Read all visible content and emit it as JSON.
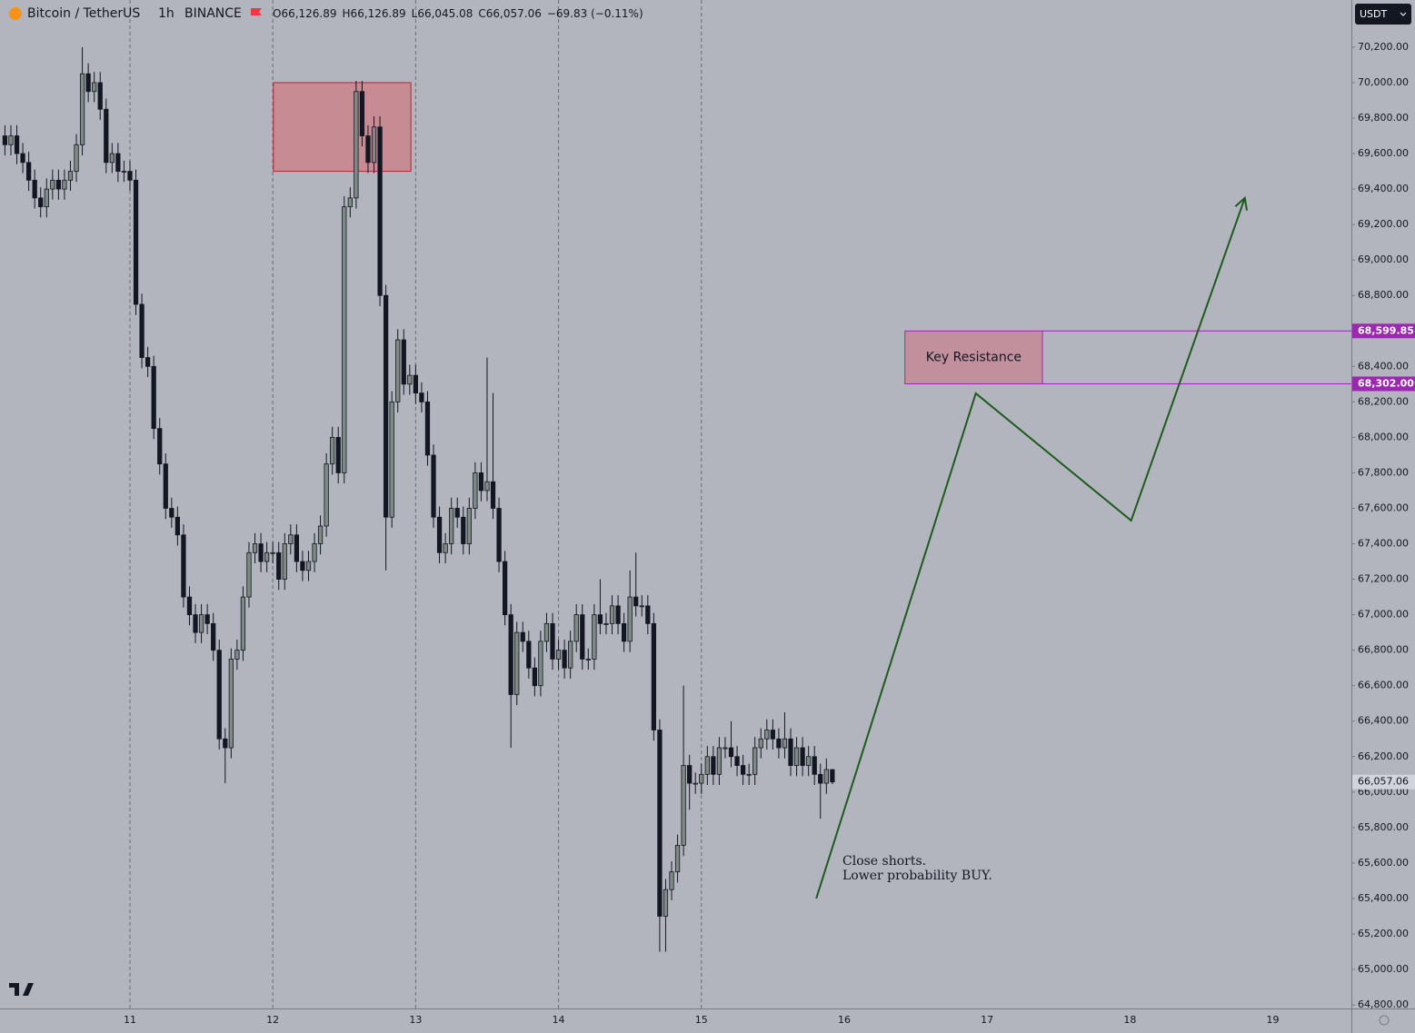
{
  "chart_data": {
    "type": "candlestick",
    "symbol": "Bitcoin / TetherUS",
    "interval": "1h",
    "exchange": "BINANCE",
    "legend": [
      "O66,126.89",
      "H66,126.89",
      "L66,045.08",
      "C66,057.06",
      "−69.83 (−0.11%)"
    ],
    "currency": "USDT",
    "last_price_label": "66,057.06",
    "up_color": "#7e8a83",
    "down_color": "#131722",
    "background": "#b2b5be",
    "candles": [
      [
        69700,
        69760,
        69590,
        69650
      ],
      [
        69650,
        69760,
        69590,
        69700
      ],
      [
        69700,
        69760,
        69540,
        69600
      ],
      [
        69600,
        69660,
        69490,
        69550
      ],
      [
        69550,
        69610,
        69390,
        69450
      ],
      [
        69450,
        69510,
        69290,
        69350
      ],
      [
        69350,
        69410,
        69240,
        69300
      ],
      [
        69300,
        69460,
        69240,
        69400
      ],
      [
        69400,
        69510,
        69340,
        69450
      ],
      [
        69450,
        69510,
        69340,
        69400
      ],
      [
        69400,
        69510,
        69340,
        69450
      ],
      [
        69450,
        69560,
        69390,
        69500
      ],
      [
        69500,
        69710,
        69440,
        69650
      ],
      [
        69650,
        70200,
        69590,
        70050
      ],
      [
        70050,
        70110,
        69890,
        69950
      ],
      [
        69950,
        70060,
        69890,
        70000
      ],
      [
        70000,
        70060,
        69790,
        69850
      ],
      [
        69850,
        69910,
        69490,
        69550
      ],
      [
        69550,
        69660,
        69490,
        69600
      ],
      [
        69600,
        69660,
        69440,
        69500
      ],
      [
        69500,
        69560,
        69440,
        69500
      ],
      [
        69500,
        69560,
        69390,
        69450
      ],
      [
        69450,
        69510,
        68690,
        68750
      ],
      [
        68750,
        68810,
        68390,
        68450
      ],
      [
        68450,
        68510,
        68340,
        68400
      ],
      [
        68400,
        68460,
        67990,
        68050
      ],
      [
        68050,
        68110,
        67790,
        67850
      ],
      [
        67850,
        67910,
        67540,
        67600
      ],
      [
        67600,
        67660,
        67490,
        67550
      ],
      [
        67550,
        67610,
        67390,
        67450
      ],
      [
        67450,
        67510,
        67040,
        67100
      ],
      [
        67100,
        67160,
        66940,
        67000
      ],
      [
        67000,
        67060,
        66840,
        66900
      ],
      [
        66900,
        67060,
        66840,
        67000
      ],
      [
        67000,
        67060,
        66890,
        66950
      ],
      [
        66950,
        67010,
        66740,
        66800
      ],
      [
        66800,
        66860,
        66240,
        66300
      ],
      [
        66300,
        66360,
        66050,
        66250
      ],
      [
        66250,
        66810,
        66190,
        66750
      ],
      [
        66750,
        66860,
        66690,
        66800
      ],
      [
        66800,
        67160,
        66740,
        67100
      ],
      [
        67100,
        67410,
        67040,
        67350
      ],
      [
        67350,
        67460,
        67290,
        67400
      ],
      [
        67400,
        67460,
        67240,
        67300
      ],
      [
        67300,
        67410,
        67240,
        67350
      ],
      [
        67350,
        67410,
        67290,
        67350
      ],
      [
        67350,
        67410,
        67140,
        67200
      ],
      [
        67200,
        67460,
        67140,
        67400
      ],
      [
        67400,
        67510,
        67340,
        67450
      ],
      [
        67450,
        67510,
        67240,
        67300
      ],
      [
        67300,
        67360,
        67190,
        67250
      ],
      [
        67250,
        67360,
        67190,
        67300
      ],
      [
        67300,
        67460,
        67240,
        67400
      ],
      [
        67400,
        67560,
        67340,
        67500
      ],
      [
        67500,
        67910,
        67440,
        67850
      ],
      [
        67850,
        68060,
        67790,
        68000
      ],
      [
        68000,
        68060,
        67740,
        67800
      ],
      [
        67800,
        69360,
        67740,
        69300
      ],
      [
        69300,
        69410,
        69240,
        69350
      ],
      [
        69350,
        70010,
        69290,
        69950
      ],
      [
        69950,
        70010,
        69640,
        69700
      ],
      [
        69700,
        69760,
        69490,
        69550
      ],
      [
        69550,
        69810,
        69490,
        69750
      ],
      [
        69750,
        69810,
        68740,
        68800
      ],
      [
        68800,
        68860,
        67250,
        67550
      ],
      [
        67550,
        68260,
        67490,
        68200
      ],
      [
        68200,
        68610,
        68140,
        68550
      ],
      [
        68550,
        68610,
        68240,
        68300
      ],
      [
        68300,
        68410,
        68240,
        68350
      ],
      [
        68350,
        68410,
        68190,
        68250
      ],
      [
        68250,
        68310,
        68140,
        68200
      ],
      [
        68200,
        68260,
        67840,
        67900
      ],
      [
        67900,
        67960,
        67490,
        67550
      ],
      [
        67550,
        67610,
        67290,
        67350
      ],
      [
        67350,
        67460,
        67290,
        67400
      ],
      [
        67400,
        67660,
        67340,
        67600
      ],
      [
        67600,
        67660,
        67490,
        67550
      ],
      [
        67550,
        67610,
        67340,
        67400
      ],
      [
        67400,
        67660,
        67340,
        67600
      ],
      [
        67600,
        67860,
        67540,
        67800
      ],
      [
        67800,
        67860,
        67640,
        67700
      ],
      [
        67700,
        68450,
        67640,
        67750
      ],
      [
        67750,
        68250,
        67540,
        67600
      ],
      [
        67600,
        67660,
        67240,
        67300
      ],
      [
        67300,
        67360,
        66940,
        67000
      ],
      [
        67000,
        67060,
        66250,
        66550
      ],
      [
        66550,
        66960,
        66490,
        66900
      ],
      [
        66900,
        66960,
        66790,
        66850
      ],
      [
        66850,
        66910,
        66640,
        66700
      ],
      [
        66700,
        66760,
        66540,
        66600
      ],
      [
        66600,
        66910,
        66540,
        66850
      ],
      [
        66850,
        67010,
        66790,
        66950
      ],
      [
        66950,
        67010,
        66690,
        66750
      ],
      [
        66750,
        66860,
        66690,
        66800
      ],
      [
        66800,
        66860,
        66640,
        66700
      ],
      [
        66700,
        66910,
        66640,
        66850
      ],
      [
        66850,
        67060,
        66790,
        67000
      ],
      [
        67000,
        67060,
        66690,
        66750
      ],
      [
        66750,
        66810,
        66690,
        66750
      ],
      [
        66750,
        67060,
        66690,
        67000
      ],
      [
        67000,
        67200,
        66890,
        66950
      ],
      [
        66950,
        67010,
        66890,
        66950
      ],
      [
        66950,
        67110,
        66890,
        67050
      ],
      [
        67050,
        67110,
        66890,
        66950
      ],
      [
        66950,
        67010,
        66790,
        66850
      ],
      [
        66850,
        67250,
        66790,
        67100
      ],
      [
        67100,
        67350,
        66990,
        67050
      ],
      [
        67050,
        67110,
        66990,
        67050
      ],
      [
        67050,
        67110,
        66890,
        66950
      ],
      [
        66950,
        67010,
        66290,
        66350
      ],
      [
        66350,
        66410,
        65100,
        65300
      ],
      [
        65300,
        65510,
        65100,
        65450
      ],
      [
        65450,
        65610,
        65390,
        65550
      ],
      [
        65550,
        65760,
        65490,
        65700
      ],
      [
        65700,
        66600,
        65640,
        66150
      ],
      [
        66150,
        66210,
        65900,
        66050
      ],
      [
        66050,
        66110,
        65990,
        66050
      ],
      [
        66050,
        66160,
        65990,
        66100
      ],
      [
        66100,
        66260,
        66040,
        66200
      ],
      [
        66200,
        66260,
        66040,
        66100
      ],
      [
        66100,
        66310,
        66040,
        66250
      ],
      [
        66250,
        66310,
        66190,
        66250
      ],
      [
        66250,
        66400,
        66140,
        66200
      ],
      [
        66200,
        66260,
        66090,
        66150
      ],
      [
        66150,
        66210,
        66040,
        66100
      ],
      [
        66100,
        66160,
        66040,
        66100
      ],
      [
        66100,
        66310,
        66040,
        66250
      ],
      [
        66250,
        66360,
        66190,
        66300
      ],
      [
        66300,
        66410,
        66240,
        66350
      ],
      [
        66350,
        66410,
        66240,
        66300
      ],
      [
        66300,
        66360,
        66190,
        66250
      ],
      [
        66250,
        66450,
        66190,
        66300
      ],
      [
        66300,
        66360,
        66090,
        66150
      ],
      [
        66150,
        66310,
        66090,
        66250
      ],
      [
        66250,
        66310,
        66090,
        66150
      ],
      [
        66150,
        66260,
        66090,
        66200
      ],
      [
        66200,
        66260,
        66040,
        66100
      ],
      [
        66100,
        66160,
        65850,
        66050
      ],
      [
        66050,
        66190,
        65990,
        66126.89
      ],
      [
        66126.89,
        66126.89,
        66045.08,
        66057.06
      ]
    ],
    "xlim": [
      -0.83,
      226.2
    ],
    "ylim": [
      64780,
      70466
    ],
    "xticks": [
      {
        "value": 21,
        "label": "11"
      },
      {
        "value": 45,
        "label": "12"
      },
      {
        "value": 69,
        "label": "13"
      },
      {
        "value": 93,
        "label": "14"
      },
      {
        "value": 117,
        "label": "15"
      },
      {
        "value": 141,
        "label": "16"
      },
      {
        "value": 165,
        "label": "17"
      },
      {
        "value": 189,
        "label": "18"
      },
      {
        "value": 213,
        "label": "19"
      }
    ],
    "yticks": [
      {
        "value": 64800,
        "label": "64,800.00"
      },
      {
        "value": 65000,
        "label": "65,000.00"
      },
      {
        "value": 65200,
        "label": "65,200.00"
      },
      {
        "value": 65400,
        "label": "65,400.00"
      },
      {
        "value": 65600,
        "label": "65,600.00"
      },
      {
        "value": 65800,
        "label": "65,800.00"
      },
      {
        "value": 66000,
        "label": "66,000.00"
      },
      {
        "value": 66200,
        "label": "66,200.00"
      },
      {
        "value": 66400,
        "label": "66,400.00"
      },
      {
        "value": 66600,
        "label": "66,600.00"
      },
      {
        "value": 66800,
        "label": "66,800.00"
      },
      {
        "value": 67000,
        "label": "67,000.00"
      },
      {
        "value": 67200,
        "label": "67,200.00"
      },
      {
        "value": 67400,
        "label": "67,400.00"
      },
      {
        "value": 67600,
        "label": "67,600.00"
      },
      {
        "value": 67800,
        "label": "67,800.00"
      },
      {
        "value": 68000,
        "label": "68,000.00"
      },
      {
        "value": 68200,
        "label": "68,200.00"
      },
      {
        "value": 68400,
        "label": "68,400.00"
      },
      {
        "value": 68600,
        "label": "68,600.00"
      },
      {
        "value": 68800,
        "label": "68,800.00"
      },
      {
        "value": 69000,
        "label": "69,000.00"
      },
      {
        "value": 69200,
        "label": "69,200.00"
      },
      {
        "value": 69400,
        "label": "69,400.00"
      },
      {
        "value": 69600,
        "label": "69,600.00"
      },
      {
        "value": 69800,
        "label": "69,800.00"
      },
      {
        "value": 70000,
        "label": "70,000.00"
      },
      {
        "value": 70200,
        "label": "70,200.00"
      }
    ],
    "day_separators": true,
    "supply_zone": {
      "x": [
        45.1,
        68.2
      ],
      "y": [
        69500,
        70000
      ],
      "color": "#c9848c",
      "border": "#b22833"
    },
    "resistance_zone": {
      "label": "Key Resistance",
      "x": [
        151.2,
        174.3
      ],
      "y": [
        68302.0,
        68599.85
      ],
      "price_labels": [
        "68,302.00",
        "68,599.85"
      ],
      "color": "#c48996",
      "border": "#9c27b0"
    },
    "projection": {
      "x": [
        136.3,
        163.1,
        189.2,
        208.3
      ],
      "y": [
        65400,
        68248,
        67531,
        69350
      ],
      "color": "#1e5b1f"
    },
    "note": [
      "Close shorts.",
      "Lower probability BUY."
    ]
  }
}
